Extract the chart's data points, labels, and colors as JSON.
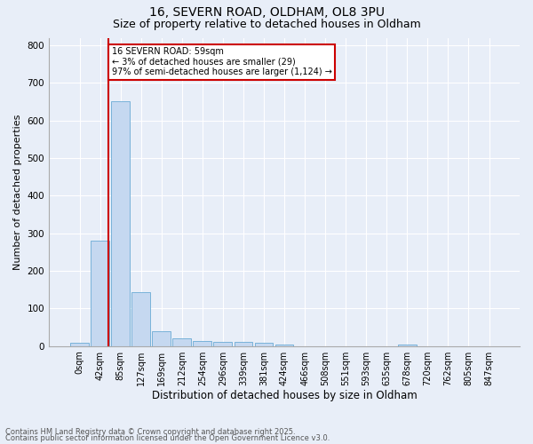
{
  "title1": "16, SEVERN ROAD, OLDHAM, OL8 3PU",
  "title2": "Size of property relative to detached houses in Oldham",
  "xlabel": "Distribution of detached houses by size in Oldham",
  "ylabel": "Number of detached properties",
  "categories": [
    "0sqm",
    "42sqm",
    "85sqm",
    "127sqm",
    "169sqm",
    "212sqm",
    "254sqm",
    "296sqm",
    "339sqm",
    "381sqm",
    "424sqm",
    "466sqm",
    "508sqm",
    "551sqm",
    "593sqm",
    "635sqm",
    "678sqm",
    "720sqm",
    "762sqm",
    "805sqm",
    "847sqm"
  ],
  "values": [
    8,
    280,
    650,
    143,
    40,
    20,
    14,
    12,
    12,
    9,
    5,
    0,
    0,
    0,
    0,
    0,
    5,
    0,
    0,
    0,
    0
  ],
  "bar_color": "#c5d8f0",
  "bar_edge_color": "#6aaad4",
  "vline_color": "#cc0000",
  "vline_x": 1.42,
  "annotation_text": "16 SEVERN ROAD: 59sqm\n← 3% of detached houses are smaller (29)\n97% of semi-detached houses are larger (1,124) →",
  "annotation_box_color": "#ffffff",
  "annotation_box_edge": "#cc0000",
  "footer1": "Contains HM Land Registry data © Crown copyright and database right 2025.",
  "footer2": "Contains public sector information licensed under the Open Government Licence v3.0.",
  "bg_color": "#e8eef8",
  "plot_bg_color": "#e8eef8",
  "ylim": [
    0,
    820
  ],
  "yticks": [
    0,
    100,
    200,
    300,
    400,
    500,
    600,
    700,
    800
  ],
  "title_fontsize": 10,
  "subtitle_fontsize": 9,
  "tick_fontsize": 7,
  "ylabel_fontsize": 8,
  "xlabel_fontsize": 8.5,
  "footer_fontsize": 6
}
